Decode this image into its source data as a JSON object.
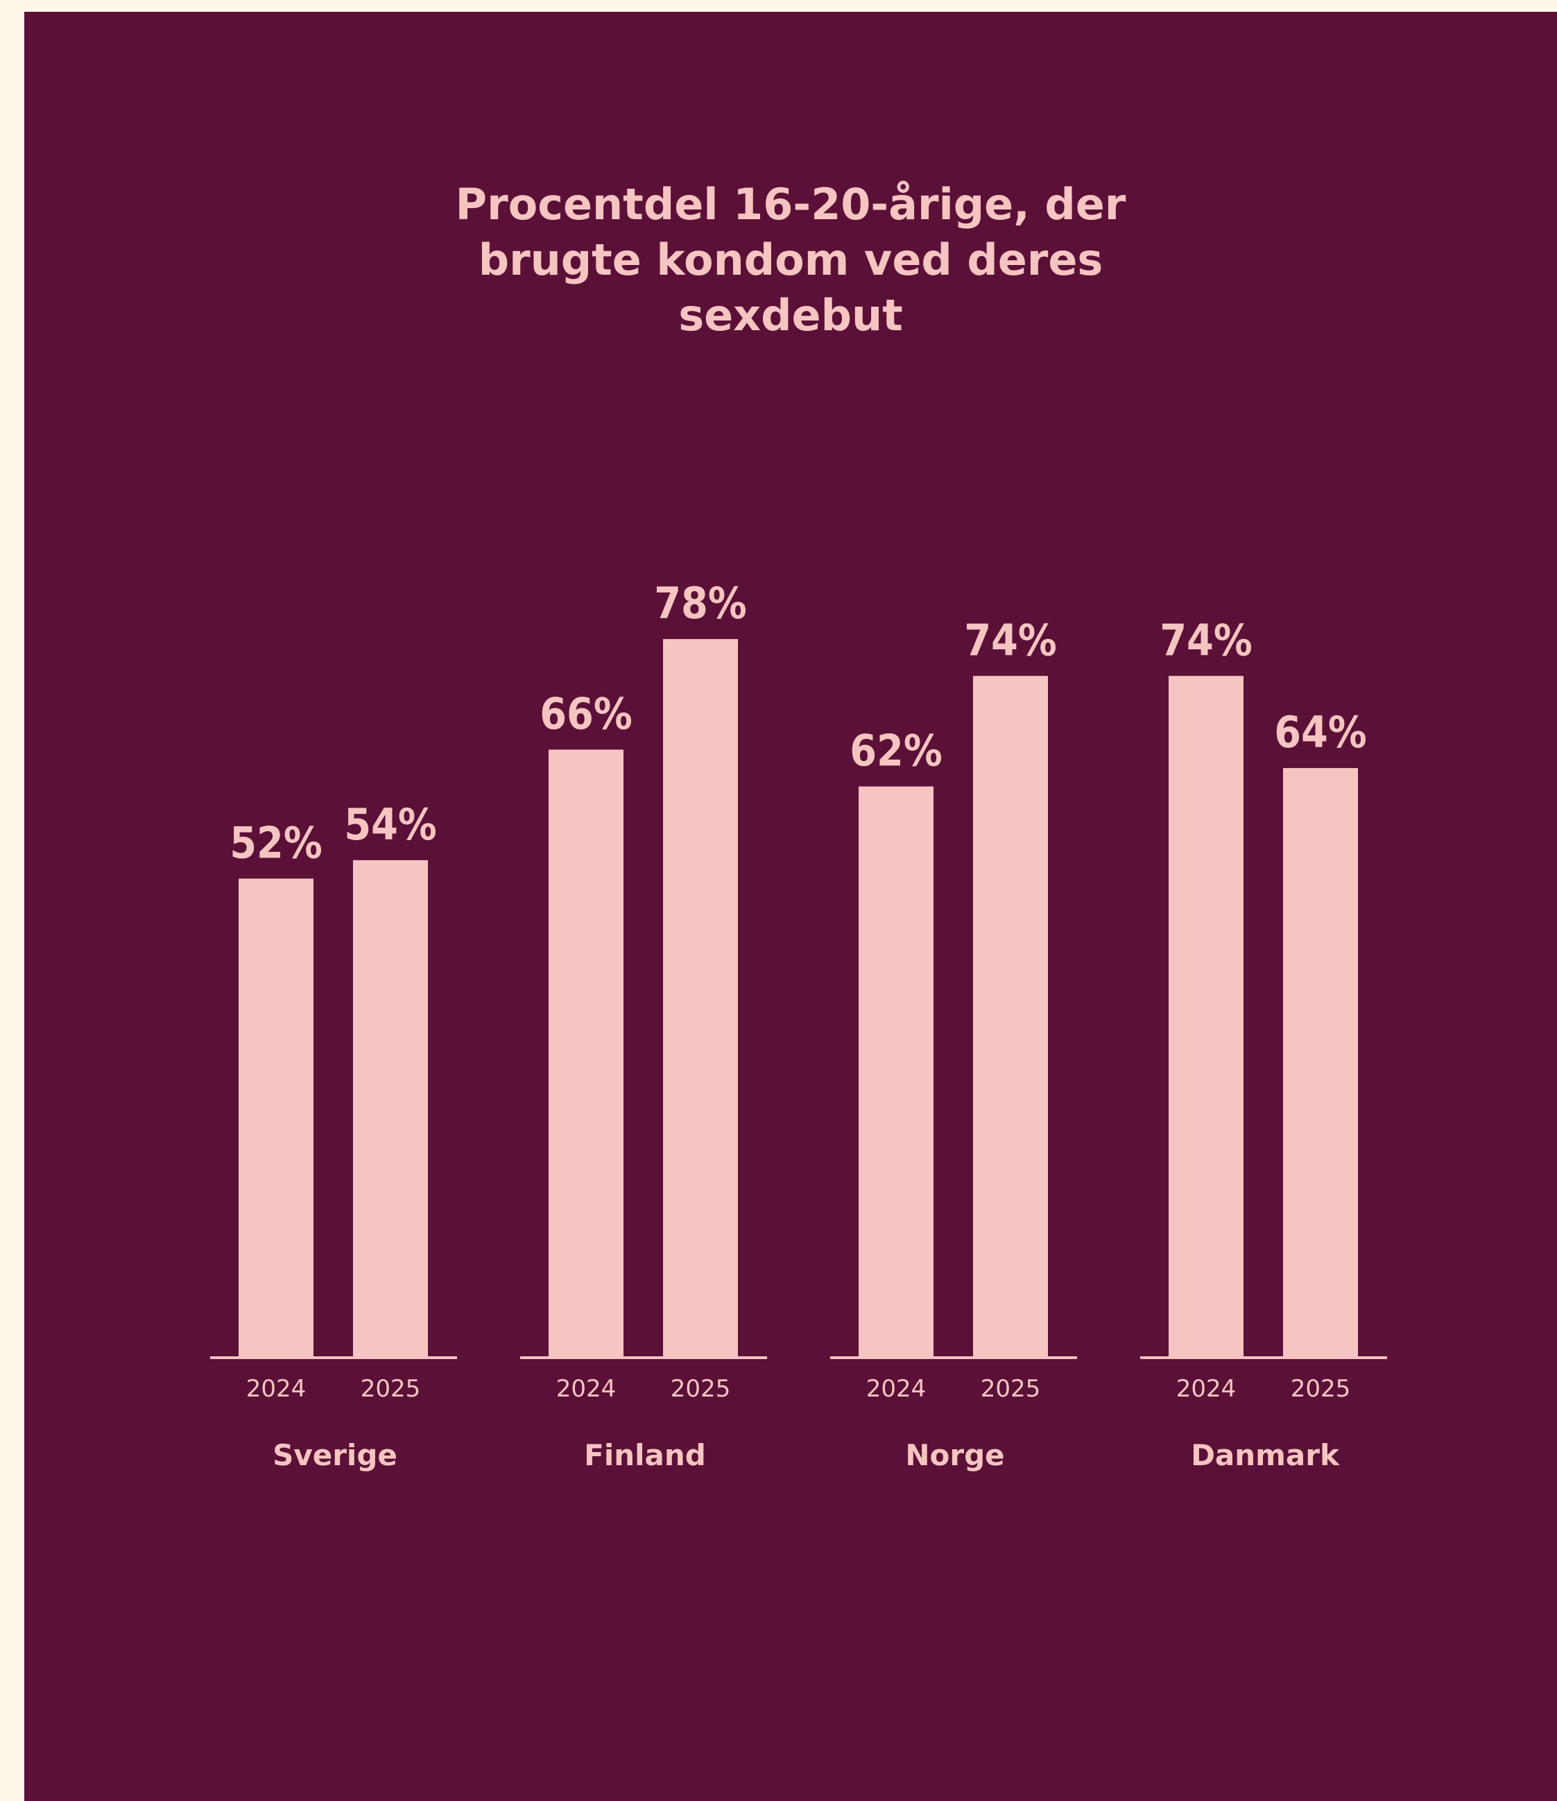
{
  "chart_data": {
    "type": "bar",
    "title_lines": [
      "Procentdel 16-20-årige, der",
      "brugte kondom ved deres",
      "sexdebut"
    ],
    "groups": [
      {
        "name": "Sverige",
        "bars": [
          {
            "year": "2024",
            "value": 52,
            "label": "52%"
          },
          {
            "year": "2025",
            "value": 54,
            "label": "54%"
          }
        ]
      },
      {
        "name": "Finland",
        "bars": [
          {
            "year": "2024",
            "value": 66,
            "label": "66%"
          },
          {
            "year": "2025",
            "value": 78,
            "label": "78%"
          }
        ]
      },
      {
        "name": "Norge",
        "bars": [
          {
            "year": "2024",
            "value": 62,
            "label": "62%"
          },
          {
            "year": "2025",
            "value": 74,
            "label": "74%"
          }
        ]
      },
      {
        "name": "Danmark",
        "bars": [
          {
            "year": "2024",
            "value": 74,
            "label": "74%"
          },
          {
            "year": "2025",
            "value": 64,
            "label": "64%"
          }
        ]
      }
    ],
    "ylim": [
      0,
      100
    ],
    "grid": false,
    "legend": "none",
    "colors": {
      "background": "#5b1037",
      "bar": "#f6c5c1",
      "text": "#f6c5c1",
      "page": "#fdf7ea"
    }
  }
}
